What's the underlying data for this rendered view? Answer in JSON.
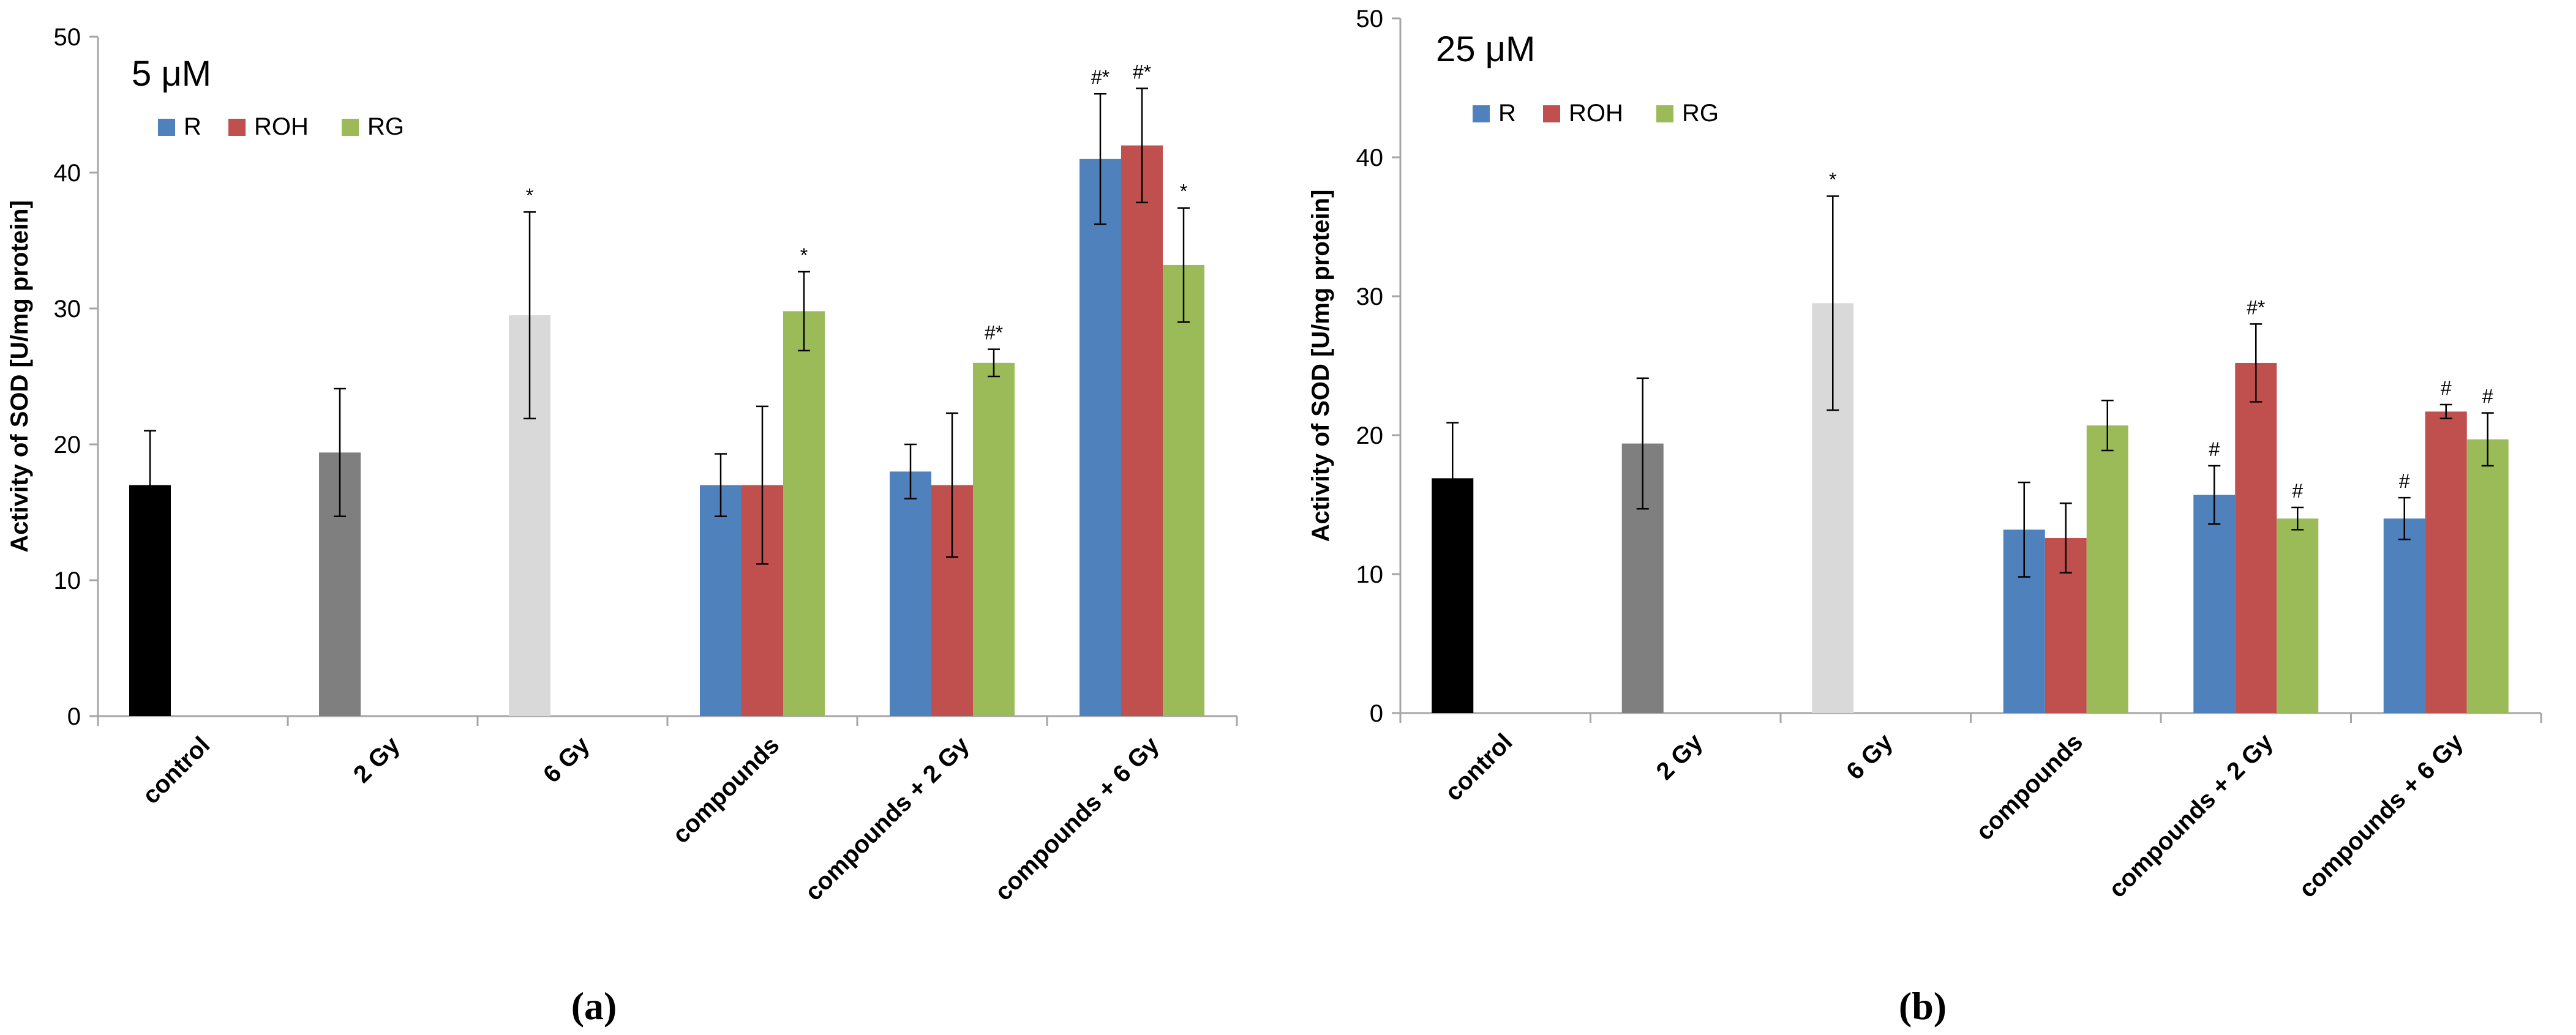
{
  "colors": {
    "control": "#000000",
    "gy2": "#7f7f7f",
    "gy6": "#d9d9d9",
    "R": "#4f81bd",
    "ROH": "#c0504d",
    "RG": "#9bbb59",
    "axis": "#a6a6a6",
    "text": "#000000"
  },
  "chart_data": [
    {
      "type": "bar",
      "panel_label": "(a)",
      "title": "5 μM",
      "xlabel": "",
      "ylabel": "Activity of SOD [U/mg protein]",
      "ylim": [
        0,
        50
      ],
      "yticks": [
        0,
        10,
        20,
        30,
        40,
        50
      ],
      "grid": false,
      "legend": "top-left",
      "categories": [
        "control",
        "2 Gy",
        "6 Gy",
        "compounds",
        "compounds + 2 Gy",
        "compounds + 6 Gy"
      ],
      "series": [
        {
          "name": "R",
          "values": [
            null,
            null,
            null,
            17.0,
            18.0,
            41.0
          ],
          "errors": [
            null,
            null,
            null,
            2.3,
            2.0,
            4.8
          ],
          "annotations": [
            "",
            "",
            "",
            "",
            "",
            "#*"
          ]
        },
        {
          "name": "ROH",
          "values": [
            null,
            null,
            null,
            17.0,
            17.0,
            42.0
          ],
          "errors": [
            null,
            null,
            null,
            5.8,
            5.3,
            4.2
          ],
          "annotations": [
            "",
            "",
            "",
            "",
            "",
            "#*"
          ]
        },
        {
          "name": "RG",
          "values": [
            null,
            null,
            null,
            29.8,
            26.0,
            33.2
          ],
          "errors": [
            null,
            null,
            null,
            2.9,
            1.0,
            4.2
          ],
          "annotations": [
            "",
            "",
            "",
            "*",
            "#*",
            "*"
          ]
        }
      ],
      "single_bars": [
        {
          "category": "control",
          "value": 17.0,
          "error": 4.0,
          "annotation": "",
          "color_key": "control"
        },
        {
          "category": "2 Gy",
          "value": 19.4,
          "error": 4.7,
          "annotation": "",
          "color_key": "gy2"
        },
        {
          "category": "6 Gy",
          "value": 29.5,
          "error": 7.6,
          "annotation": "*",
          "color_key": "gy6"
        }
      ]
    },
    {
      "type": "bar",
      "panel_label": "(b)",
      "title": "25 μM",
      "xlabel": "",
      "ylabel": "Activity of SOD [U/mg protein]",
      "ylim": [
        0,
        50
      ],
      "yticks": [
        0,
        10,
        20,
        30,
        40,
        50
      ],
      "grid": false,
      "legend": "top-left",
      "categories": [
        "control",
        "2 Gy",
        "6 Gy",
        "compounds",
        "compounds + 2 Gy",
        "compounds + 6 Gy"
      ],
      "series": [
        {
          "name": "R",
          "values": [
            null,
            null,
            null,
            13.2,
            15.7,
            14.0
          ],
          "errors": [
            null,
            null,
            null,
            3.4,
            2.1,
            1.5
          ],
          "annotations": [
            "",
            "",
            "",
            "",
            "#",
            "#"
          ]
        },
        {
          "name": "ROH",
          "values": [
            null,
            null,
            null,
            12.6,
            25.2,
            21.7
          ],
          "errors": [
            null,
            null,
            null,
            2.5,
            2.8,
            0.5
          ],
          "annotations": [
            "",
            "",
            "",
            "",
            "#*",
            "#"
          ]
        },
        {
          "name": "RG",
          "values": [
            null,
            null,
            null,
            20.7,
            14.0,
            19.7
          ],
          "errors": [
            null,
            null,
            null,
            1.8,
            0.8,
            1.9
          ],
          "annotations": [
            "",
            "",
            "",
            "",
            "#",
            "#"
          ]
        }
      ],
      "single_bars": [
        {
          "category": "control",
          "value": 16.9,
          "error": 4.0,
          "annotation": "",
          "color_key": "control"
        },
        {
          "category": "2 Gy",
          "value": 19.4,
          "error": 4.7,
          "annotation": "",
          "color_key": "gy2"
        },
        {
          "category": "6 Gy",
          "value": 29.5,
          "error": 7.7,
          "annotation": "*",
          "color_key": "gy6"
        }
      ]
    }
  ]
}
